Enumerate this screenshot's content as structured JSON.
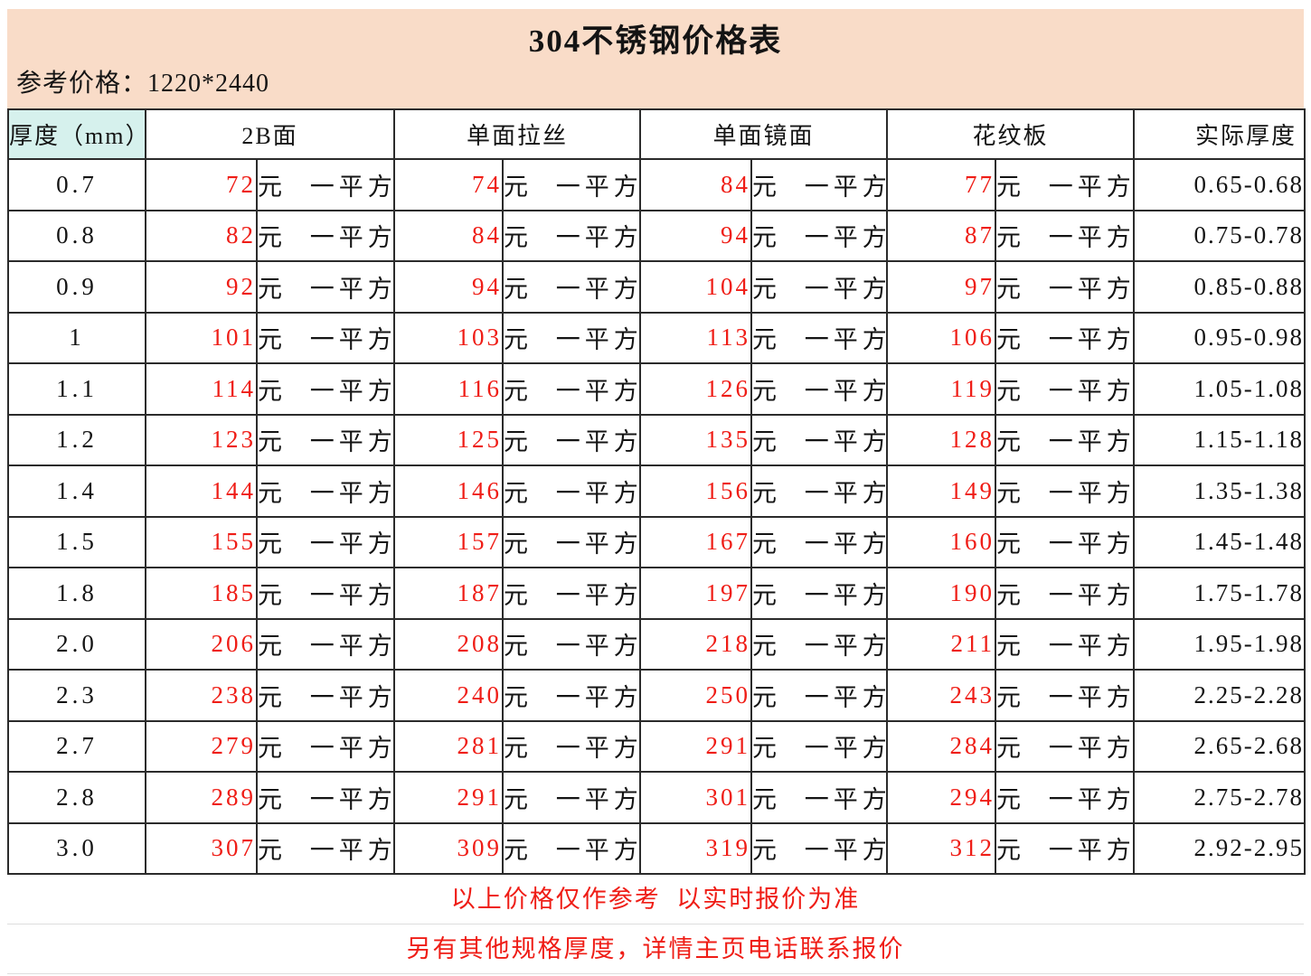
{
  "title": "304不锈钢价格表",
  "subtitle": "参考价格：1220*2440",
  "columns": {
    "thickness": "厚度（mm）",
    "surfaces": [
      "2B面",
      "单面拉丝",
      "单面镜面",
      "花纹板"
    ],
    "actual": "实际厚度"
  },
  "unit_label": "元 一平方",
  "rows": [
    {
      "thickness": "0.7",
      "prices": [
        72,
        74,
        84,
        77
      ],
      "actual": "0.65-0.68"
    },
    {
      "thickness": "0.8",
      "prices": [
        82,
        84,
        94,
        87
      ],
      "actual": "0.75-0.78"
    },
    {
      "thickness": "0.9",
      "prices": [
        92,
        94,
        104,
        97
      ],
      "actual": "0.85-0.88"
    },
    {
      "thickness": "1",
      "prices": [
        101,
        103,
        113,
        106
      ],
      "actual": "0.95-0.98"
    },
    {
      "thickness": "1.1",
      "prices": [
        114,
        116,
        126,
        119
      ],
      "actual": "1.05-1.08"
    },
    {
      "thickness": "1.2",
      "prices": [
        123,
        125,
        135,
        128
      ],
      "actual": "1.15-1.18"
    },
    {
      "thickness": "1.4",
      "prices": [
        144,
        146,
        156,
        149
      ],
      "actual": "1.35-1.38"
    },
    {
      "thickness": "1.5",
      "prices": [
        155,
        157,
        167,
        160
      ],
      "actual": "1.45-1.48"
    },
    {
      "thickness": "1.8",
      "prices": [
        185,
        187,
        197,
        190
      ],
      "actual": "1.75-1.78"
    },
    {
      "thickness": "2.0",
      "prices": [
        206,
        208,
        218,
        211
      ],
      "actual": "1.95-1.98"
    },
    {
      "thickness": "2.3",
      "prices": [
        238,
        240,
        250,
        243
      ],
      "actual": "2.25-2.28"
    },
    {
      "thickness": "2.7",
      "prices": [
        279,
        281,
        291,
        284
      ],
      "actual": "2.65-2.68"
    },
    {
      "thickness": "2.8",
      "prices": [
        289,
        291,
        301,
        294
      ],
      "actual": "2.75-2.78"
    },
    {
      "thickness": "3.0",
      "prices": [
        307,
        309,
        319,
        312
      ],
      "actual": "2.92-2.95"
    }
  ],
  "footers": [
    "以上价格仅作参考  以实时报价为准",
    "另有其他规格厚度，详情主页电话联系报价"
  ],
  "colors": {
    "banner_bg": "#F9DCC8",
    "thickness_col_bg": "#D6F1ED",
    "price_red": "#EF1D16",
    "table_border": "#2b2b2b",
    "sub_divider": "#dcdcdc"
  }
}
